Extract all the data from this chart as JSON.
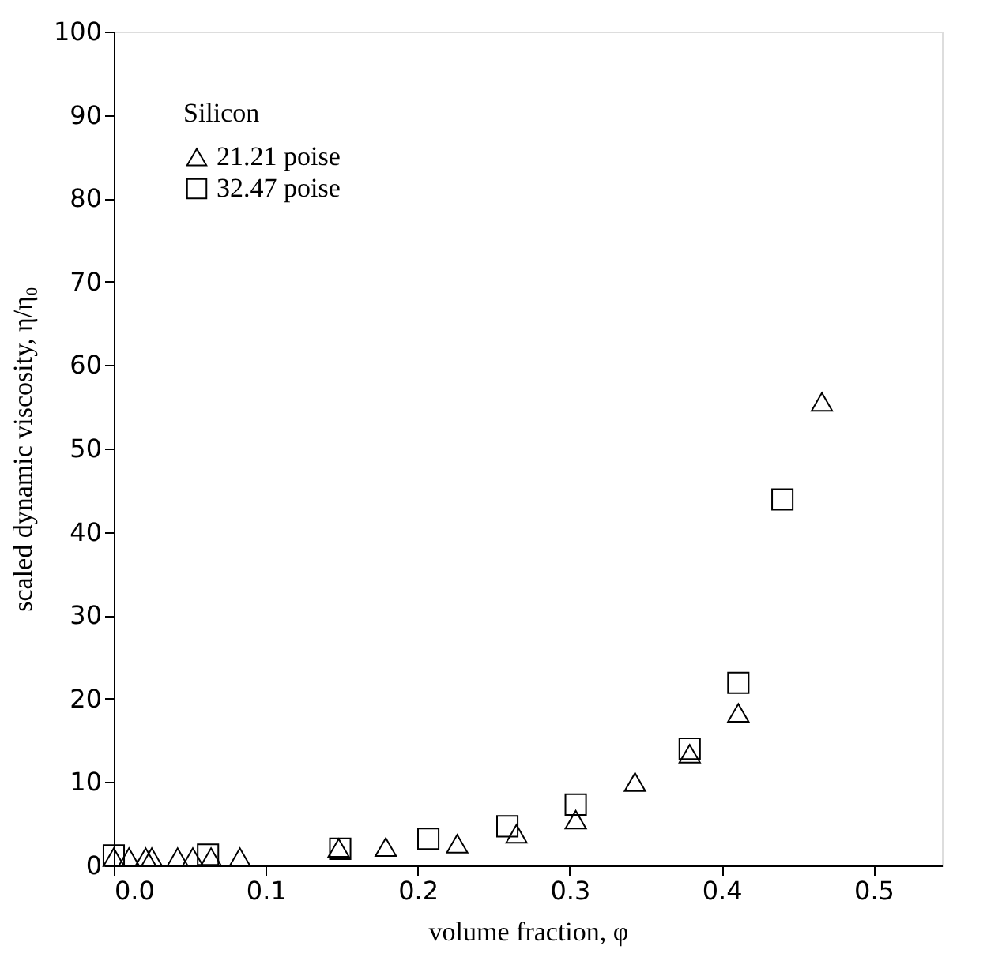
{
  "chart_data": {
    "type": "scatter",
    "xlabel": "volume fraction, φ",
    "ylabel": "scaled dynamic viscosity, η/η₀",
    "legend_title": "Silicon",
    "legend": "top left",
    "grid": false,
    "xlim": [
      0,
      0.545
    ],
    "ylim": [
      0,
      100
    ],
    "xticks": [
      {
        "value": 0,
        "label": "0.0"
      },
      0.1,
      0.2,
      0.3,
      0.4,
      0.5
    ],
    "yticks": [
      0,
      10,
      20,
      30,
      40,
      50,
      60,
      70,
      80,
      90,
      100
    ],
    "series": [
      {
        "name": "21.21 poise",
        "color": "#000000",
        "marker": "triangle",
        "x": [
          0.0,
          0.01,
          0.021,
          0.025,
          0.042,
          0.052,
          0.064,
          0.083,
          0.148,
          0.179,
          0.226,
          0.265,
          0.304,
          0.343,
          0.379,
          0.411,
          0.466
        ],
        "values": [
          1,
          1,
          1,
          1,
          1,
          1,
          1,
          1,
          2.1,
          2.2,
          2.6,
          3.8,
          5.5,
          10.0,
          13.4,
          18.3,
          55.6
        ]
      },
      {
        "name": "32.47 poise",
        "color": "#000000",
        "marker": "square",
        "x": [
          0.0,
          0.062,
          0.149,
          0.207,
          0.259,
          0.304,
          0.379,
          0.411,
          0.44
        ],
        "values": [
          1.2,
          1.3,
          2.0,
          3.2,
          4.7,
          7.3,
          14.0,
          21.9,
          43.9
        ]
      }
    ]
  }
}
